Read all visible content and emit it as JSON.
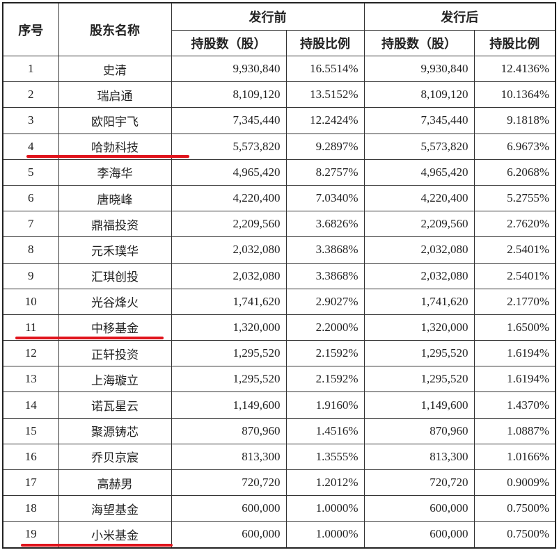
{
  "table": {
    "headers": {
      "index": "序号",
      "name": "股东名称",
      "before": "发行前",
      "after": "发行后",
      "shares": "持股数（股）",
      "ratio": "持股比例"
    },
    "rows": [
      {
        "no": "1",
        "name": "史清",
        "before_shares": "9,930,840",
        "before_ratio": "16.5514%",
        "after_shares": "9,930,840",
        "after_ratio": "12.4136%",
        "underlined": false
      },
      {
        "no": "2",
        "name": "瑞启通",
        "before_shares": "8,109,120",
        "before_ratio": "13.5152%",
        "after_shares": "8,109,120",
        "after_ratio": "10.1364%",
        "underlined": false
      },
      {
        "no": "3",
        "name": "欧阳宇飞",
        "before_shares": "7,345,440",
        "before_ratio": "12.2424%",
        "after_shares": "7,345,440",
        "after_ratio": "9.1818%",
        "underlined": false
      },
      {
        "no": "4",
        "name": "哈勃科技",
        "before_shares": "5,573,820",
        "before_ratio": "9.2897%",
        "after_shares": "5,573,820",
        "after_ratio": "6.9673%",
        "underlined": true
      },
      {
        "no": "5",
        "name": "李海华",
        "before_shares": "4,965,420",
        "before_ratio": "8.2757%",
        "after_shares": "4,965,420",
        "after_ratio": "6.2068%",
        "underlined": false
      },
      {
        "no": "6",
        "name": "唐晓峰",
        "before_shares": "4,220,400",
        "before_ratio": "7.0340%",
        "after_shares": "4,220,400",
        "after_ratio": "5.2755%",
        "underlined": false
      },
      {
        "no": "7",
        "name": "鼎福投资",
        "before_shares": "2,209,560",
        "before_ratio": "3.6826%",
        "after_shares": "2,209,560",
        "after_ratio": "2.7620%",
        "underlined": false
      },
      {
        "no": "8",
        "name": "元禾璞华",
        "before_shares": "2,032,080",
        "before_ratio": "3.3868%",
        "after_shares": "2,032,080",
        "after_ratio": "2.5401%",
        "underlined": false
      },
      {
        "no": "9",
        "name": "汇琪创投",
        "before_shares": "2,032,080",
        "before_ratio": "3.3868%",
        "after_shares": "2,032,080",
        "after_ratio": "2.5401%",
        "underlined": false
      },
      {
        "no": "10",
        "name": "光谷烽火",
        "before_shares": "1,741,620",
        "before_ratio": "2.9027%",
        "after_shares": "1,741,620",
        "after_ratio": "2.1770%",
        "underlined": false
      },
      {
        "no": "11",
        "name": "中移基金",
        "before_shares": "1,320,000",
        "before_ratio": "2.2000%",
        "after_shares": "1,320,000",
        "after_ratio": "1.6500%",
        "underlined": true
      },
      {
        "no": "12",
        "name": "正轩投资",
        "before_shares": "1,295,520",
        "before_ratio": "2.1592%",
        "after_shares": "1,295,520",
        "after_ratio": "1.6194%",
        "underlined": false
      },
      {
        "no": "13",
        "name": "上海璇立",
        "before_shares": "1,295,520",
        "before_ratio": "2.1592%",
        "after_shares": "1,295,520",
        "after_ratio": "1.6194%",
        "underlined": false
      },
      {
        "no": "14",
        "name": "诺瓦星云",
        "before_shares": "1,149,600",
        "before_ratio": "1.9160%",
        "after_shares": "1,149,600",
        "after_ratio": "1.4370%",
        "underlined": false
      },
      {
        "no": "15",
        "name": "聚源铸芯",
        "before_shares": "870,960",
        "before_ratio": "1.4516%",
        "after_shares": "870,960",
        "after_ratio": "1.0887%",
        "underlined": false
      },
      {
        "no": "16",
        "name": "乔贝京宸",
        "before_shares": "813,300",
        "before_ratio": "1.3555%",
        "after_shares": "813,300",
        "after_ratio": "1.0166%",
        "underlined": false
      },
      {
        "no": "17",
        "name": "高赫男",
        "before_shares": "720,720",
        "before_ratio": "1.2012%",
        "after_shares": "720,720",
        "after_ratio": "0.9009%",
        "underlined": false
      },
      {
        "no": "18",
        "name": "海望基金",
        "before_shares": "600,000",
        "before_ratio": "1.0000%",
        "after_shares": "600,000",
        "after_ratio": "0.7500%",
        "underlined": false
      },
      {
        "no": "19",
        "name": "小米基金",
        "before_shares": "600,000",
        "before_ratio": "1.0000%",
        "after_shares": "600,000",
        "after_ratio": "0.7500%",
        "underlined": true
      }
    ]
  },
  "highlight_color": "#e0141c"
}
